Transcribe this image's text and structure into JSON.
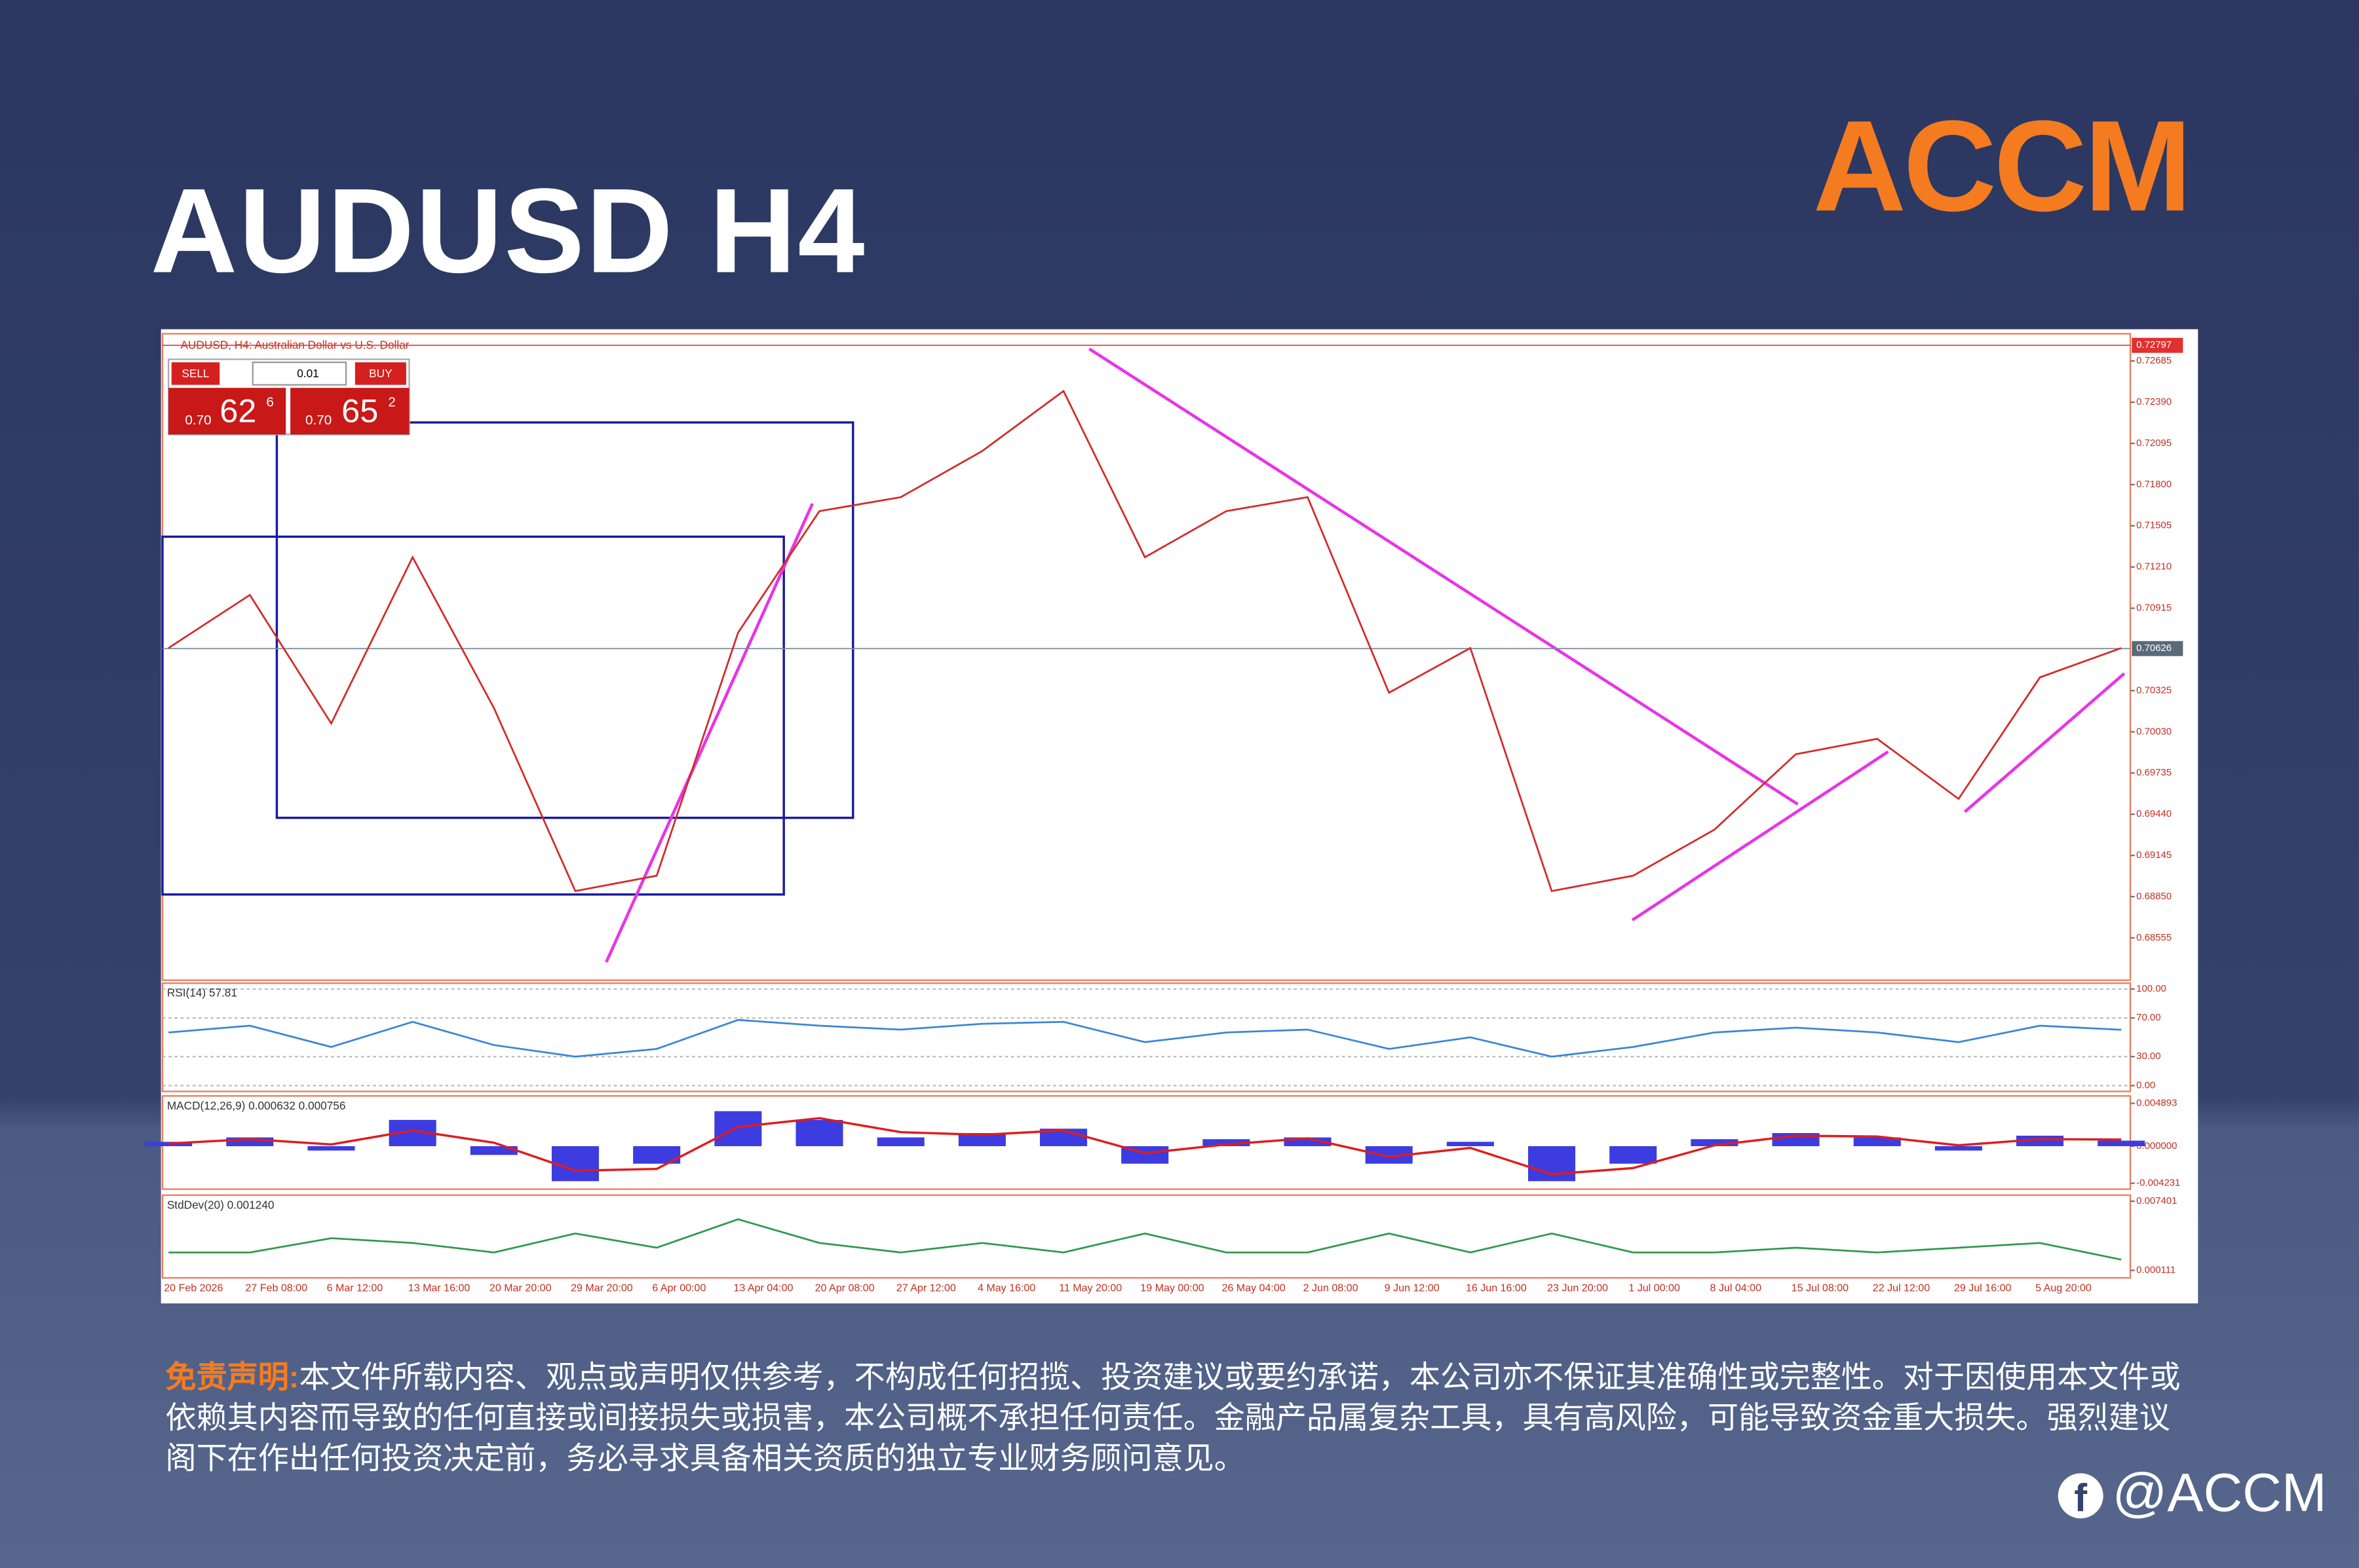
{
  "header": {
    "title": "AUDUSD H4",
    "logo": "ACCM"
  },
  "footer": {
    "disclaimer_label": "免责声明:",
    "disclaimer": "本文件所载内容、观点或声明仅供参考，不构成任何招揽、投资建议或要约承诺，本公司亦不保证其准确性或完整性。对于因使用本文件或依赖其内容而导致的任何直接或间接损失或损害，本公司概不承担任何责任。金融产品属复杂工具，具有高风险，可能导致资金重大损失。强烈建议阁下在作出任何投资决定前，务必寻求具备相关资质的独立专业财务顾问意见。",
    "handle": "@ACCM"
  },
  "trade_panel": {
    "sell": "SELL",
    "buy": "BUY",
    "lot": "0.01",
    "sell_big": "0.70",
    "sell_pips": "62",
    "sell_frac": "6",
    "buy_big": "0.70",
    "buy_pips": "65",
    "buy_frac": "2"
  },
  "chart_data": [
    {
      "type": "line",
      "title": "AUDUSD, H4: Australian Dollar vs U.S. Dollar",
      "color": "#d42a2a",
      "categories": [
        "20 Feb 2026",
        "27 Feb 08:00",
        "6 Mar 12:00",
        "13 Mar 16:00",
        "20 Mar 20:00",
        "29 Mar 20:00",
        "6 Apr 00:00",
        "13 Apr 04:00",
        "20 Apr 08:00",
        "27 Apr 12:00",
        "4 May 16:00",
        "11 May 20:00",
        "19 May 00:00",
        "26 May 04:00",
        "2 Jun 08:00",
        "9 Jun 12:00",
        "16 Jun 16:00",
        "23 Jun 20:00",
        "1 Jul 00:00",
        "8 Jul 04:00",
        "15 Jul 08:00",
        "22 Jul 12:00",
        "29 Jul 16:00",
        "5 Aug 20:00",
        null
      ],
      "values": [
        0.7063,
        0.7101,
        0.7009,
        0.7128,
        0.702,
        0.6889,
        0.69,
        0.7074,
        0.7161,
        0.7171,
        0.7204,
        0.7247,
        0.7128,
        0.7161,
        0.7171,
        0.7031,
        0.7063,
        0.6889,
        0.69,
        0.6933,
        0.6987,
        0.6998,
        0.6955,
        0.7042,
        0.7063
      ],
      "ylim": [
        0.68252,
        0.7288
      ],
      "yticks": [
        0.72685,
        {
          "value": 0.7239,
          "label": "0.72390"
        },
        0.72095,
        {
          "value": 0.718,
          "label": "0.71800"
        },
        0.71505,
        {
          "value": 0.7121,
          "label": "0.71210"
        },
        0.70915,
        0.70325,
        {
          "value": 0.7003,
          "label": "0.70030"
        },
        0.69735,
        {
          "value": 0.6944,
          "label": "0.69440"
        },
        0.69145,
        {
          "value": 0.6885,
          "label": "0.68850"
        },
        0.68555
      ],
      "reference_lines": [
        0.72797,
        0.70626
      ]
    },
    {
      "type": "line",
      "title": "RSI(14) 57.81",
      "color": "#3b86d8",
      "values": [
        55,
        62,
        40,
        66,
        42,
        30,
        38,
        68,
        62,
        58,
        64,
        66,
        45,
        55,
        58,
        38,
        50,
        30,
        40,
        55,
        60,
        55,
        45,
        62,
        57.81
      ],
      "ylim": [
        -6,
        106
      ],
      "yticks": [
        {
          "value": 100,
          "label": "100.00"
        },
        {
          "value": 70,
          "label": "70.00"
        },
        {
          "value": 30,
          "label": "30.00"
        },
        {
          "value": 0,
          "label": "0.00"
        }
      ]
    },
    {
      "type": "macd",
      "title": "MACD(12,26,9) 0.000632 0.000756",
      "color": "#3c3ce0",
      "signal_color": "#e01c1c",
      "values": [
        0.0005,
        0.001,
        -0.0005,
        0.003,
        -0.001,
        -0.004,
        -0.002,
        0.004,
        0.003,
        0.001,
        0.0015,
        0.002,
        -0.002,
        0.0008,
        0.001,
        -0.002,
        0.0005,
        -0.004,
        -0.002,
        0.0008,
        0.0015,
        0.001,
        -0.0005,
        0.0012,
        0.000632
      ],
      "signal": [
        0.0003,
        0.0008,
        0.0002,
        0.0018,
        0.0004,
        -0.0028,
        -0.0026,
        0.0022,
        0.0032,
        0.0016,
        0.0013,
        0.0018,
        -0.0008,
        0.0002,
        0.0009,
        -0.0012,
        -0.0002,
        -0.0032,
        -0.0025,
        0.0001,
        0.0012,
        0.0011,
        0.0001,
        0.0008,
        0.000756
      ],
      "ylim": [
        -0.00491,
        0.00574
      ],
      "yticks": [
        0.004893,
        {
          "value": 0,
          "label": "0.000000"
        },
        -0.004231
      ]
    },
    {
      "type": "line",
      "title": "StdDev(20) 0.001240",
      "color": "#2f9a4c",
      "values": [
        0.002,
        0.002,
        0.0035,
        0.003,
        0.002,
        0.004,
        0.0025,
        0.0055,
        0.003,
        0.002,
        0.003,
        0.002,
        0.004,
        0.002,
        0.002,
        0.004,
        0.002,
        0.004,
        0.002,
        0.002,
        0.0025,
        0.002,
        0.0025,
        0.003,
        0.00124
      ],
      "ylim": [
        -0.00068,
        0.00804
      ],
      "yticks": [
        0.007401,
        0.000111
      ]
    }
  ]
}
